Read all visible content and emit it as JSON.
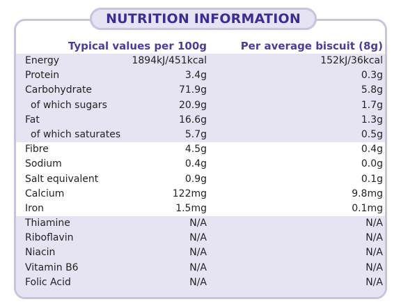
{
  "title": "NUTRITION INFORMATION",
  "headers": {
    "typical": "Typical values per 100g",
    "average": "Per average biscuit (8g)"
  },
  "colors": {
    "accent": "#3c2c95",
    "band": "#e6e3f2",
    "border": "#c9c3de"
  },
  "rows": [
    {
      "name": "Energy",
      "typical": "1894kJ/451kcal",
      "average": "152kJ/36kcal"
    },
    {
      "name": "Protein",
      "typical": "3.4g",
      "average": "0.3g"
    },
    {
      "name": "Carbohydrate",
      "typical": "71.9g",
      "average": "5.8g"
    },
    {
      "name": "of which sugars",
      "typical": "20.9g",
      "average": "1.7g"
    },
    {
      "name": "Fat",
      "typical": "16.6g",
      "average": "1.3g"
    },
    {
      "name": "of which saturates",
      "typical": "5.7g",
      "average": "0.5g"
    },
    {
      "name": "Fibre",
      "typical": "4.5g",
      "average": "0.4g"
    },
    {
      "name": "Sodium",
      "typical": "0.4g",
      "average": "0.0g"
    },
    {
      "name": "Salt equivalent",
      "typical": "0.9g",
      "average": "0.1g"
    },
    {
      "name": "Calcium",
      "typical": "122mg",
      "average": "9.8mg"
    },
    {
      "name": "Iron",
      "typical": "1.5mg",
      "average": "0.1mg"
    },
    {
      "name": "Thiamine",
      "typical": "N/A",
      "average": "N/A"
    },
    {
      "name": "Riboflavin",
      "typical": "N/A",
      "average": "N/A"
    },
    {
      "name": "Niacin",
      "typical": "N/A",
      "average": "N/A"
    },
    {
      "name": "Vitamin B6",
      "typical": "N/A",
      "average": "N/A"
    },
    {
      "name": "Folic Acid",
      "typical": "N/A",
      "average": "N/A"
    }
  ]
}
